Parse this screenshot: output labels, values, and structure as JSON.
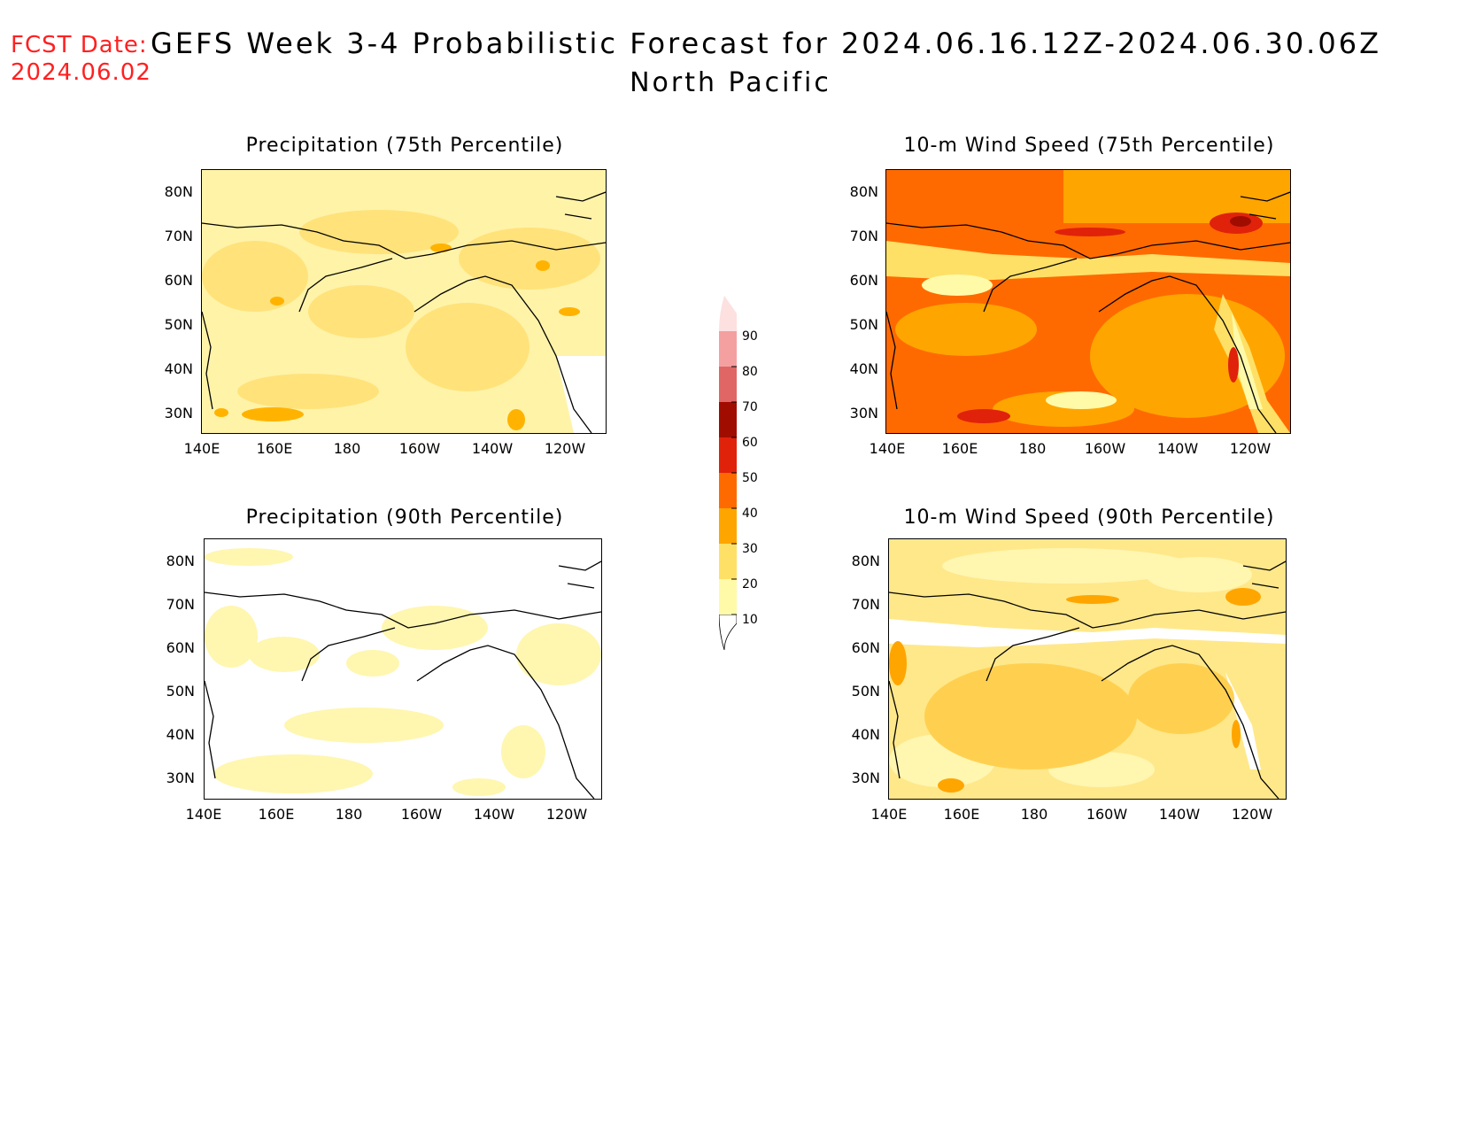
{
  "header": {
    "fcst_label": "FCST Date:",
    "fcst_date": "2024.06.02",
    "title": "GEFS Week 3-4 Probabilistic Forecast for 2024.06.16.12Z-2024.06.30.06Z",
    "subtitle": "North Pacific"
  },
  "axes": {
    "lat_labels": [
      "80N",
      "70N",
      "60N",
      "50N",
      "40N",
      "30N"
    ],
    "lon_labels": [
      "140E",
      "160E",
      "180",
      "160W",
      "140W",
      "120W"
    ]
  },
  "panels": [
    {
      "title": "Precipitation (75th Percentile)",
      "dominant_color": "#fff3a8"
    },
    {
      "title": "10-m Wind Speed (75th Percentile)",
      "dominant_color": "#ff6a00"
    },
    {
      "title": "Precipitation (90th Percentile)",
      "dominant_color": "#ffffff"
    },
    {
      "title": "10-m Wind Speed (90th Percentile)",
      "dominant_color": "#ffe88a"
    }
  ],
  "colorbar": {
    "labels": [
      "10",
      "20",
      "30",
      "40",
      "50",
      "60",
      "70",
      "80",
      "90"
    ],
    "colors": [
      "#fffaa8",
      "#ffe066",
      "#ffa500",
      "#ff6a00",
      "#e0220a",
      "#a00c00",
      "#e06666",
      "#f4a0a0",
      "#fde0e0"
    ]
  }
}
